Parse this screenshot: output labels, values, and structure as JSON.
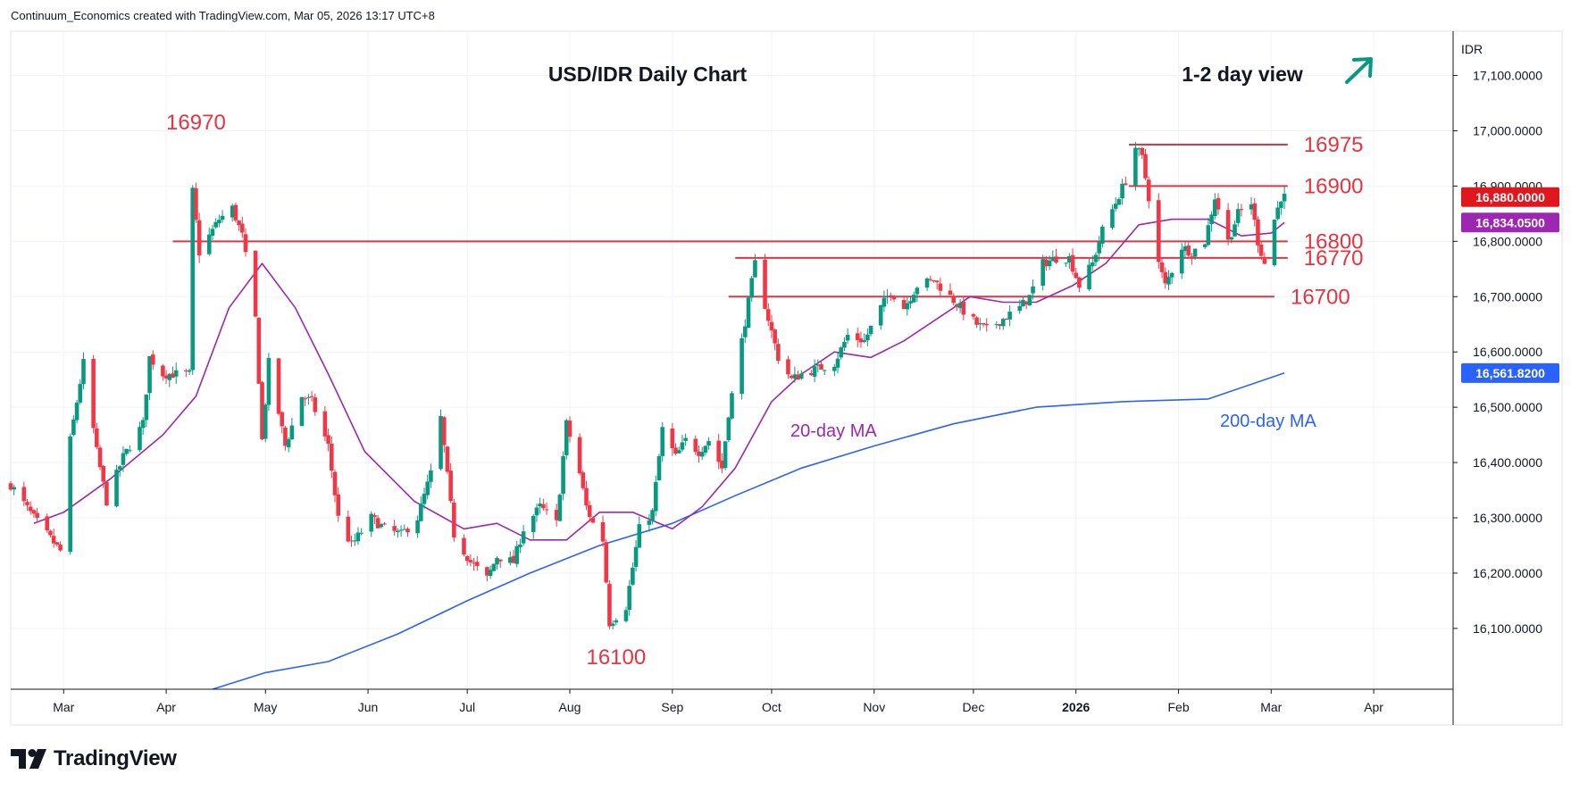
{
  "header": {
    "credit": "Continuum_Economics created with TradingView.com, Mar 05, 2026 13:17 UTC+8"
  },
  "brand": {
    "name": "TradingView"
  },
  "chart_data": {
    "type": "candlestick",
    "title": "USD/IDR Daily Chart",
    "view_label": "1-2 day view",
    "view_direction": "up",
    "currency": "IDR",
    "ylim": [
      15990,
      17180
    ],
    "y_ticks": [
      {
        "value": 16100,
        "label": "16,100.0000"
      },
      {
        "value": 16200,
        "label": "16,200.0000"
      },
      {
        "value": 16300,
        "label": "16,300.0000"
      },
      {
        "value": 16400,
        "label": "16,400.0000"
      },
      {
        "value": 16500,
        "label": "16,500.0000"
      },
      {
        "value": 16600,
        "label": "16,600.0000"
      },
      {
        "value": 16700,
        "label": "16,700.0000"
      },
      {
        "value": 16800,
        "label": "16,800.0000"
      },
      {
        "value": 16900,
        "label": "16,900.0000"
      },
      {
        "value": 17000,
        "label": "17,000.0000"
      },
      {
        "value": 17100,
        "label": "17,100.0000"
      }
    ],
    "x_range": [
      "2025-02-13",
      "2026-04-25"
    ],
    "x_ticks": [
      {
        "date": "2025-03-01",
        "label": "Mar"
      },
      {
        "date": "2025-04-01",
        "label": "Apr"
      },
      {
        "date": "2025-05-01",
        "label": "May"
      },
      {
        "date": "2025-06-01",
        "label": "Jun"
      },
      {
        "date": "2025-07-01",
        "label": "Jul"
      },
      {
        "date": "2025-08-01",
        "label": "Aug"
      },
      {
        "date": "2025-09-01",
        "label": "Sep"
      },
      {
        "date": "2025-10-01",
        "label": "Oct"
      },
      {
        "date": "2025-11-01",
        "label": "Nov"
      },
      {
        "date": "2025-12-01",
        "label": "Dec"
      },
      {
        "date": "2026-01-01",
        "label": "2026"
      },
      {
        "date": "2026-02-01",
        "label": "Feb"
      },
      {
        "date": "2026-03-01",
        "label": "Mar"
      },
      {
        "date": "2026-04-01",
        "label": "Apr"
      }
    ],
    "series_anchors": {
      "close": [
        [
          "2025-02-13",
          16360
        ],
        [
          "2025-02-20",
          16300
        ],
        [
          "2025-02-28",
          16240
        ],
        [
          "2025-03-03",
          16440
        ],
        [
          "2025-03-07",
          16580
        ],
        [
          "2025-03-11",
          16420
        ],
        [
          "2025-03-14",
          16330
        ],
        [
          "2025-03-19",
          16410
        ],
        [
          "2025-03-25",
          16470
        ],
        [
          "2025-03-27",
          16590
        ],
        [
          "2025-03-31",
          16560
        ],
        [
          "2025-04-08",
          16560
        ],
        [
          "2025-04-09",
          16890
        ],
        [
          "2025-04-11",
          16780
        ],
        [
          "2025-04-15",
          16820
        ],
        [
          "2025-04-17",
          16840
        ],
        [
          "2025-04-21",
          16860
        ],
        [
          "2025-04-24",
          16810
        ],
        [
          "2025-04-28",
          16660
        ],
        [
          "2025-04-30",
          16440
        ],
        [
          "2025-05-02",
          16580
        ],
        [
          "2025-05-07",
          16430
        ],
        [
          "2025-05-12",
          16520
        ],
        [
          "2025-05-15",
          16510
        ],
        [
          "2025-05-20",
          16430
        ],
        [
          "2025-05-23",
          16300
        ],
        [
          "2025-05-27",
          16250
        ],
        [
          "2025-06-02",
          16300
        ],
        [
          "2025-06-06",
          16280
        ],
        [
          "2025-06-11",
          16270
        ],
        [
          "2025-06-16",
          16300
        ],
        [
          "2025-06-20",
          16380
        ],
        [
          "2025-06-23",
          16480
        ],
        [
          "2025-06-27",
          16270
        ],
        [
          "2025-07-02",
          16220
        ],
        [
          "2025-07-07",
          16190
        ],
        [
          "2025-07-10",
          16230
        ],
        [
          "2025-07-15",
          16220
        ],
        [
          "2025-07-18",
          16280
        ],
        [
          "2025-07-23",
          16320
        ],
        [
          "2025-07-28",
          16290
        ],
        [
          "2025-07-31",
          16470
        ],
        [
          "2025-08-04",
          16380
        ],
        [
          "2025-08-06",
          16320
        ],
        [
          "2025-08-08",
          16290
        ],
        [
          "2025-08-11",
          16260
        ],
        [
          "2025-08-13",
          16110
        ],
        [
          "2025-08-18",
          16140
        ],
        [
          "2025-08-22",
          16280
        ],
        [
          "2025-08-26",
          16310
        ],
        [
          "2025-08-29",
          16460
        ],
        [
          "2025-09-02",
          16410
        ],
        [
          "2025-09-05",
          16440
        ],
        [
          "2025-09-09",
          16420
        ],
        [
          "2025-09-12",
          16440
        ],
        [
          "2025-09-16",
          16390
        ],
        [
          "2025-09-18",
          16490
        ],
        [
          "2025-09-22",
          16620
        ],
        [
          "2025-09-26",
          16760
        ],
        [
          "2025-09-30",
          16660
        ],
        [
          "2025-10-03",
          16590
        ],
        [
          "2025-10-07",
          16550
        ],
        [
          "2025-10-10",
          16560
        ],
        [
          "2025-10-15",
          16570
        ],
        [
          "2025-10-20",
          16580
        ],
        [
          "2025-10-24",
          16630
        ],
        [
          "2025-10-29",
          16620
        ],
        [
          "2025-11-03",
          16680
        ],
        [
          "2025-11-06",
          16710
        ],
        [
          "2025-11-10",
          16680
        ],
        [
          "2025-11-14",
          16720
        ],
        [
          "2025-11-19",
          16730
        ],
        [
          "2025-11-24",
          16700
        ],
        [
          "2025-11-27",
          16680
        ],
        [
          "2025-12-02",
          16650
        ],
        [
          "2025-12-05",
          16640
        ],
        [
          "2025-12-10",
          16660
        ],
        [
          "2025-12-15",
          16680
        ],
        [
          "2025-12-18",
          16700
        ],
        [
          "2025-12-22",
          16760
        ],
        [
          "2025-12-26",
          16770
        ],
        [
          "2025-12-30",
          16770
        ],
        [
          "2026-01-02",
          16720
        ],
        [
          "2026-01-06",
          16760
        ],
        [
          "2026-01-09",
          16820
        ],
        [
          "2026-01-13",
          16870
        ],
        [
          "2026-01-16",
          16910
        ],
        [
          "2026-01-19",
          16970
        ],
        [
          "2026-01-21",
          16950
        ],
        [
          "2026-01-23",
          16880
        ],
        [
          "2026-01-26",
          16760
        ],
        [
          "2026-01-28",
          16720
        ],
        [
          "2026-02-02",
          16790
        ],
        [
          "2026-02-05",
          16780
        ],
        [
          "2026-02-09",
          16800
        ],
        [
          "2026-02-12",
          16880
        ],
        [
          "2026-02-16",
          16800
        ],
        [
          "2026-02-19",
          16850
        ],
        [
          "2026-02-23",
          16870
        ],
        [
          "2026-02-25",
          16800
        ],
        [
          "2026-02-27",
          16760
        ],
        [
          "2026-03-02",
          16840
        ],
        [
          "2026-03-04",
          16880
        ],
        [
          "2026-03-05",
          16880
        ]
      ],
      "ma20": [
        [
          "2025-02-20",
          16290
        ],
        [
          "2025-03-01",
          16310
        ],
        [
          "2025-03-15",
          16370
        ],
        [
          "2025-03-31",
          16450
        ],
        [
          "2025-04-10",
          16520
        ],
        [
          "2025-04-20",
          16680
        ],
        [
          "2025-04-30",
          16760
        ],
        [
          "2025-05-10",
          16680
        ],
        [
          "2025-05-20",
          16560
        ],
        [
          "2025-05-31",
          16420
        ],
        [
          "2025-06-15",
          16330
        ],
        [
          "2025-06-30",
          16280
        ],
        [
          "2025-07-10",
          16290
        ],
        [
          "2025-07-20",
          16260
        ],
        [
          "2025-07-31",
          16260
        ],
        [
          "2025-08-10",
          16310
        ],
        [
          "2025-08-20",
          16310
        ],
        [
          "2025-09-01",
          16280
        ],
        [
          "2025-09-10",
          16320
        ],
        [
          "2025-09-20",
          16390
        ],
        [
          "2025-10-01",
          16510
        ],
        [
          "2025-10-10",
          16560
        ],
        [
          "2025-10-20",
          16600
        ],
        [
          "2025-10-31",
          16590
        ],
        [
          "2025-11-10",
          16620
        ],
        [
          "2025-11-20",
          16660
        ],
        [
          "2025-11-30",
          16700
        ],
        [
          "2025-12-10",
          16690
        ],
        [
          "2025-12-20",
          16690
        ],
        [
          "2025-12-31",
          16720
        ],
        [
          "2026-01-10",
          16760
        ],
        [
          "2026-01-20",
          16830
        ],
        [
          "2026-01-30",
          16840
        ],
        [
          "2026-02-10",
          16840
        ],
        [
          "2026-02-20",
          16810
        ],
        [
          "2026-03-01",
          16815
        ],
        [
          "2026-03-05",
          16834
        ]
      ],
      "ma200": [
        [
          "2025-04-15",
          15990
        ],
        [
          "2025-05-01",
          16020
        ],
        [
          "2025-05-20",
          16040
        ],
        [
          "2025-06-10",
          16090
        ],
        [
          "2025-07-01",
          16150
        ],
        [
          "2025-07-20",
          16200
        ],
        [
          "2025-08-10",
          16250
        ],
        [
          "2025-09-01",
          16290
        ],
        [
          "2025-09-20",
          16340
        ],
        [
          "2025-10-10",
          16390
        ],
        [
          "2025-11-01",
          16430
        ],
        [
          "2025-11-25",
          16470
        ],
        [
          "2025-12-20",
          16500
        ],
        [
          "2026-01-15",
          16510
        ],
        [
          "2026-02-10",
          16515
        ],
        [
          "2026-03-05",
          16562
        ]
      ]
    },
    "current_price": {
      "value": 16880,
      "label": "16,880.0000"
    },
    "ma20_value": {
      "value": 16834.05,
      "label": "16,834.0500"
    },
    "ma200_value": {
      "value": 16561.82,
      "label": "16,561.8200"
    },
    "ma_labels": {
      "ma20": "20-day MA",
      "ma200": "200-day MA"
    },
    "levels": [
      {
        "value": 16975,
        "label": "16975",
        "from": "2026-01-17",
        "to": "2026-03-06"
      },
      {
        "value": 16900,
        "label": "16900",
        "from": "2026-01-17",
        "to": "2026-03-06"
      },
      {
        "value": 16800,
        "label": "16800",
        "from": "2025-04-03",
        "to": "2026-03-06"
      },
      {
        "value": 16770,
        "label": "16770",
        "from": "2025-09-20",
        "to": "2026-03-06"
      },
      {
        "value": 16700,
        "label": "16700",
        "from": "2025-09-18",
        "to": "2026-03-02"
      }
    ],
    "annotations": [
      {
        "label": "16970",
        "value": 16970,
        "date": "2025-04-10",
        "position": "above"
      },
      {
        "label": "16100",
        "value": 16100,
        "date": "2025-08-15",
        "position": "below"
      }
    ],
    "colors": {
      "up": "#089981",
      "down": "#f23645",
      "ma20": "#9c27b0",
      "ma200": "#2962ff",
      "level": "#e8333f",
      "price_tag": "#e0181e",
      "ma20_tag": "#9c27b0",
      "ma200_tag": "#2962ff",
      "arrow": "#089981",
      "grid": "#f0f3fa",
      "axis": "#131722"
    },
    "grid": true
  }
}
